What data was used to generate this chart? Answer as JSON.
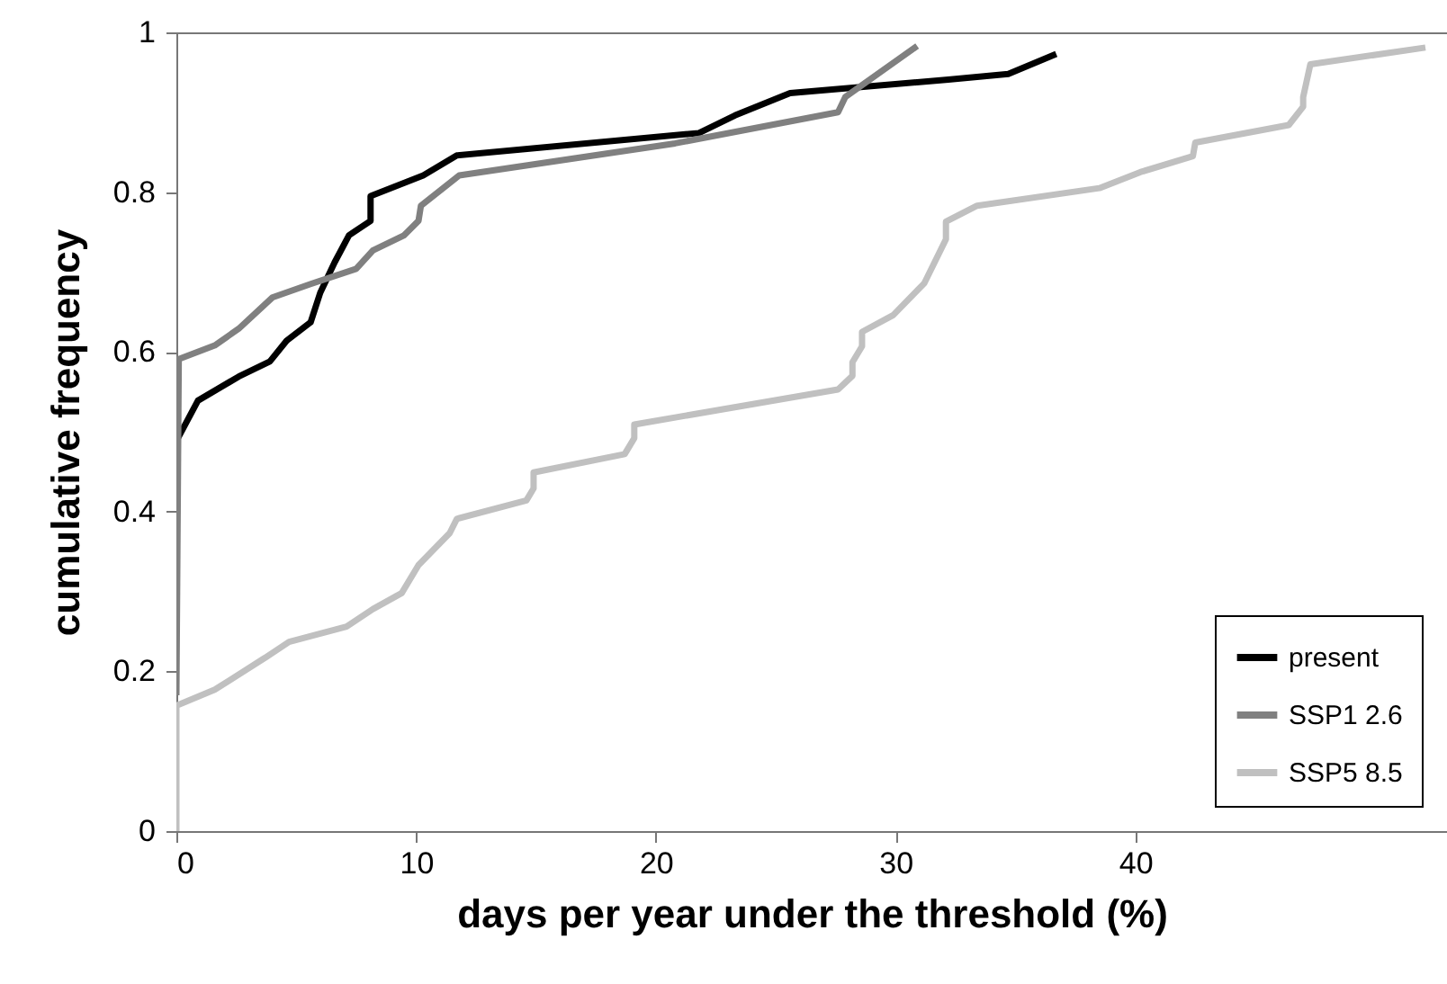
{
  "chart_data": {
    "type": "line",
    "xlabel": "days per year under the threshold (%)",
    "ylabel": "cumulative frequency",
    "xlim": [
      0,
      53
    ],
    "xticks": [
      0,
      10,
      20,
      30,
      40
    ],
    "ylim": [
      0,
      1
    ],
    "yticks": [
      0,
      0.2,
      0.4,
      0.6,
      0.8,
      1
    ],
    "grid": false,
    "legend": "bottom right",
    "marker": "none",
    "line_style": "solid",
    "series": [
      {
        "name": "present",
        "color": "#000000",
        "x": [
          0,
          0.1,
          0.9,
          2.6,
          3.9,
          4.6,
          5.6,
          6.0,
          6.6,
          7.2,
          8.1,
          8.1,
          10.3,
          11.7,
          21.8,
          23.3,
          25.6,
          32.2,
          34.7,
          36.7
        ],
        "values": [
          0.49,
          0.494,
          0.539,
          0.569,
          0.588,
          0.614,
          0.637,
          0.674,
          0.712,
          0.746,
          0.764,
          0.795,
          0.821,
          0.846,
          0.874,
          0.896,
          0.924,
          0.941,
          0.948,
          0.973
        ]
      },
      {
        "name": "SSP1 2.6",
        "color": "#808080",
        "x": [
          0,
          0.1,
          1.6,
          2.6,
          4.0,
          5.6,
          7.5,
          8.2,
          9.5,
          10.1,
          10.2,
          11.8,
          20.8,
          27.6,
          27.9,
          30.9
        ],
        "values": [
          0.17,
          0.591,
          0.608,
          0.629,
          0.668,
          0.685,
          0.704,
          0.727,
          0.746,
          0.764,
          0.783,
          0.821,
          0.861,
          0.9,
          0.919,
          0.983
        ]
      },
      {
        "name": "SSP5 8.5",
        "color": "#c0c0c0",
        "x": [
          0,
          0,
          1.6,
          3.7,
          4.7,
          7.1,
          8.2,
          9.4,
          10.1,
          11.4,
          11.7,
          14.6,
          14.9,
          14.9,
          18.7,
          19.1,
          19.1,
          27.6,
          28.2,
          28.2,
          28.6,
          28.6,
          29.9,
          31.2,
          32.1,
          32.1,
          33.4,
          38.5,
          40.2,
          42.4,
          42.5,
          46.4,
          47.0,
          47.0,
          47.3,
          52.1
        ],
        "values": [
          0,
          0.157,
          0.177,
          0.217,
          0.237,
          0.256,
          0.278,
          0.298,
          0.333,
          0.373,
          0.391,
          0.414,
          0.429,
          0.449,
          0.472,
          0.492,
          0.509,
          0.553,
          0.57,
          0.587,
          0.607,
          0.625,
          0.646,
          0.686,
          0.741,
          0.763,
          0.783,
          0.805,
          0.825,
          0.845,
          0.862,
          0.884,
          0.907,
          0.919,
          0.96,
          0.981
        ]
      }
    ]
  }
}
